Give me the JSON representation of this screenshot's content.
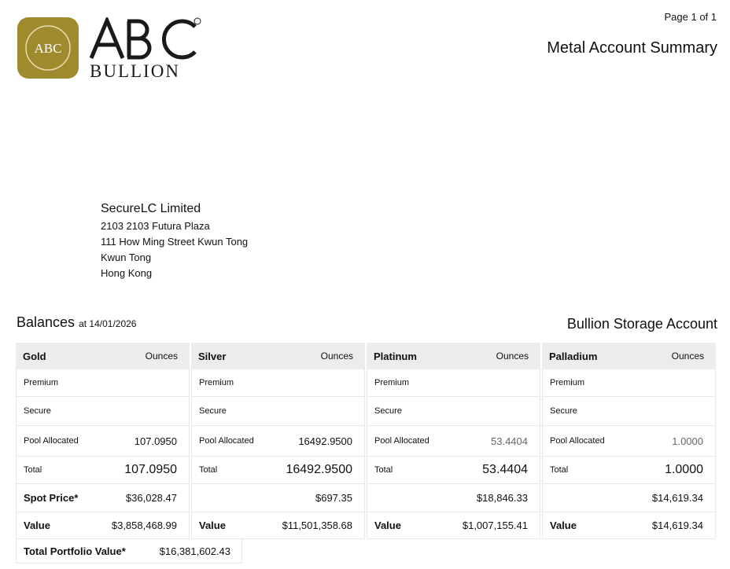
{
  "header": {
    "logo_text": "ABC BULLION",
    "logo_badge": "ABC",
    "page": "Page 1 of 1",
    "title": "Metal Account Summary"
  },
  "address": {
    "name": "SecureLC Limited",
    "lines": [
      "2103 2103 Futura Plaza",
      "111 How Ming Street Kwun Tong",
      "Kwun Tong",
      "Hong Kong"
    ]
  },
  "balances": {
    "label": "Balances",
    "date": "at 14/01/2026",
    "account": "Bullion Storage Account"
  },
  "labels": {
    "unit": "Ounces",
    "premium": "Premium",
    "secure": "Secure",
    "pool": "Pool Allocated",
    "total": "Total",
    "spot": "Spot Price*",
    "value": "Value"
  },
  "metals": [
    {
      "name": "Gold",
      "pool": "107.0950",
      "total": "107.0950",
      "spot": "$36,028.47",
      "value": "$3,858,468.99",
      "show_spot_label": true
    },
    {
      "name": "Silver",
      "pool": "16492.9500",
      "total": "16492.9500",
      "spot": "$697.35",
      "value": "$11,501,358.68"
    },
    {
      "name": "Platinum",
      "pool": "53.4404",
      "total": "53.4404",
      "spot": "$18,846.33",
      "value": "$1,007,155.41"
    },
    {
      "name": "Palladium",
      "pool": "1.0000",
      "total": "1.0000",
      "spot": "$14,619.34",
      "value": "$14,619.34"
    }
  ],
  "portfolio": {
    "label": "Total Portfolio Value*",
    "value": "$16,381,602.43"
  },
  "colors": {
    "gold": "#a08a2e",
    "header_bg": "#ececec"
  }
}
